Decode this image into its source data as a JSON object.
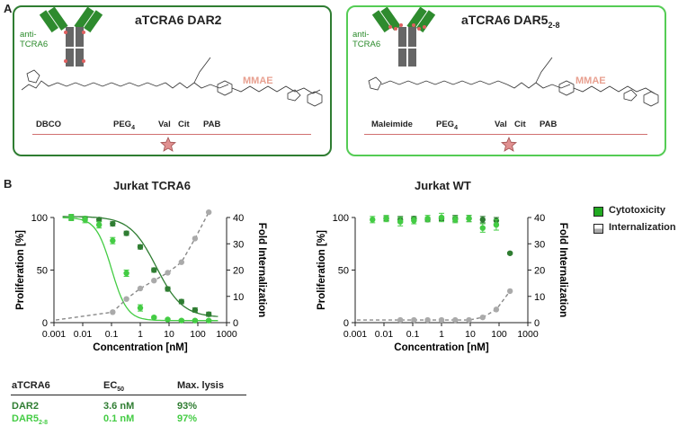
{
  "panels": {
    "a_label": "A",
    "b_label": "B"
  },
  "constructs": [
    {
      "title": "aTCRA6 DAR2",
      "antibody_label_line1": "anti-",
      "antibody_label_line2": "TCRA6",
      "payload": "MMAE",
      "linker_labels": [
        "DBCO",
        "PEG",
        "Val",
        "Cit",
        "PAB"
      ],
      "peg_sub": "4",
      "border_color": "#2f7d32"
    },
    {
      "title": "aTCRA6 DAR5",
      "title_sub": "2-8",
      "antibody_label_line1": "anti-",
      "antibody_label_line2": "TCRA6",
      "payload": "MMAE",
      "linker_labels": [
        "Maleimide",
        "PEG",
        "Val",
        "Cit",
        "PAB"
      ],
      "peg_sub": "4",
      "border_color": "#55cc55"
    }
  ],
  "legend": {
    "items": [
      "Cytotoxicity",
      "Internalization"
    ],
    "cyto_color": "#22aa22",
    "intern_color": "#aaaaaa"
  },
  "table": {
    "headers": [
      "aTCRA6",
      "EC",
      "50",
      "Max. lysis"
    ],
    "rows": [
      {
        "name": "DAR2",
        "sub": "",
        "ec50": "3.6 nM",
        "lysis": "93%",
        "color": "#2f7d32"
      },
      {
        "name": "DAR5",
        "sub": "2-8",
        "ec50": "0.1 nM",
        "lysis": "97%",
        "color": "#44cc44"
      }
    ]
  },
  "chart_data": [
    {
      "type": "scatter",
      "title": "Jurkat TCRA6",
      "xlabel": "Concentration [nM]",
      "ylabel": "Proliferation [%]",
      "y2label": "Fold Internalization",
      "xscale": "log",
      "xlim": [
        0.001,
        1000
      ],
      "xticks": [
        "0.001",
        "0.01",
        "0.1",
        "1",
        "10",
        "100",
        "1000"
      ],
      "ylim": [
        0,
        100
      ],
      "yticks": [
        0,
        50,
        100
      ],
      "y2lim": [
        0,
        40
      ],
      "y2ticks": [
        0,
        10,
        20,
        30,
        40
      ],
      "series": [
        {
          "name": "DAR2",
          "color": "#2f7d32",
          "axis": "left",
          "x": [
            0.004,
            0.012,
            0.037,
            0.11,
            0.33,
            1,
            3,
            9,
            27,
            80,
            240
          ],
          "y": [
            100,
            99,
            98,
            94,
            85,
            72,
            50,
            32,
            20,
            12,
            8
          ],
          "err": [
            2,
            2,
            2,
            2,
            2,
            2,
            2,
            2,
            2,
            2,
            2
          ],
          "fit": {
            "top": 101,
            "bottom": 5,
            "ec50": 3.6,
            "hill": 0.95
          }
        },
        {
          "name": "DAR5 2-8",
          "color": "#44cc44",
          "axis": "left",
          "x": [
            0.004,
            0.012,
            0.037,
            0.11,
            0.33,
            1,
            3,
            9,
            27,
            80,
            240
          ],
          "y": [
            100,
            98,
            93,
            78,
            47,
            14,
            5,
            3,
            2,
            2,
            2
          ],
          "err": [
            3,
            3,
            3,
            3,
            3,
            3,
            1,
            1,
            1,
            1,
            1
          ],
          "fit": {
            "top": 100,
            "bottom": 2,
            "ec50": 0.1,
            "hill": 1.6
          }
        },
        {
          "name": "Internalization",
          "color": "#aaaaaa",
          "axis": "right",
          "x": [
            0.11,
            0.33,
            1,
            3,
            9,
            27,
            80,
            240
          ],
          "y": [
            4,
            9,
            13,
            16,
            19,
            23,
            32,
            42
          ]
        }
      ]
    },
    {
      "type": "scatter",
      "title": "Jurkat WT",
      "xlabel": "Concentration [nM]",
      "ylabel": "Proliferation [%]",
      "y2label": "Fold Internalization",
      "xscale": "log",
      "xlim": [
        0.001,
        1000
      ],
      "xticks": [
        "0.001",
        "0.01",
        "0.1",
        "1",
        "10",
        "100",
        "1000"
      ],
      "ylim": [
        0,
        100
      ],
      "yticks": [
        0,
        50,
        100
      ],
      "y2lim": [
        0,
        40
      ],
      "y2ticks": [
        0,
        10,
        20,
        30,
        40
      ],
      "series": [
        {
          "name": "DAR2",
          "color": "#2f7d32",
          "axis": "left",
          "x": [
            0.012,
            0.037,
            0.11,
            0.33,
            1,
            3,
            9,
            27,
            80,
            240
          ],
          "y": [
            99,
            98,
            99,
            98,
            99,
            99,
            99,
            98,
            97,
            66
          ],
          "err": [
            2,
            3,
            2,
            2,
            2,
            3,
            3,
            3,
            3,
            1
          ]
        },
        {
          "name": "DAR5 2-8",
          "color": "#44cc44",
          "axis": "left",
          "x": [
            0.004,
            0.012,
            0.037,
            0.11,
            0.33,
            1,
            3,
            9,
            27,
            80
          ],
          "y": [
            98,
            99,
            96,
            97,
            99,
            100,
            98,
            99,
            90,
            93
          ],
          "err": [
            3,
            3,
            4,
            3,
            3,
            4,
            3,
            3,
            4,
            5
          ]
        },
        {
          "name": "Internalization",
          "color": "#aaaaaa",
          "axis": "right",
          "x": [
            0.037,
            0.11,
            0.33,
            1,
            3,
            9,
            27,
            80,
            240
          ],
          "y": [
            1,
            1,
            1,
            1,
            1,
            1,
            2,
            5,
            12
          ]
        }
      ]
    }
  ]
}
